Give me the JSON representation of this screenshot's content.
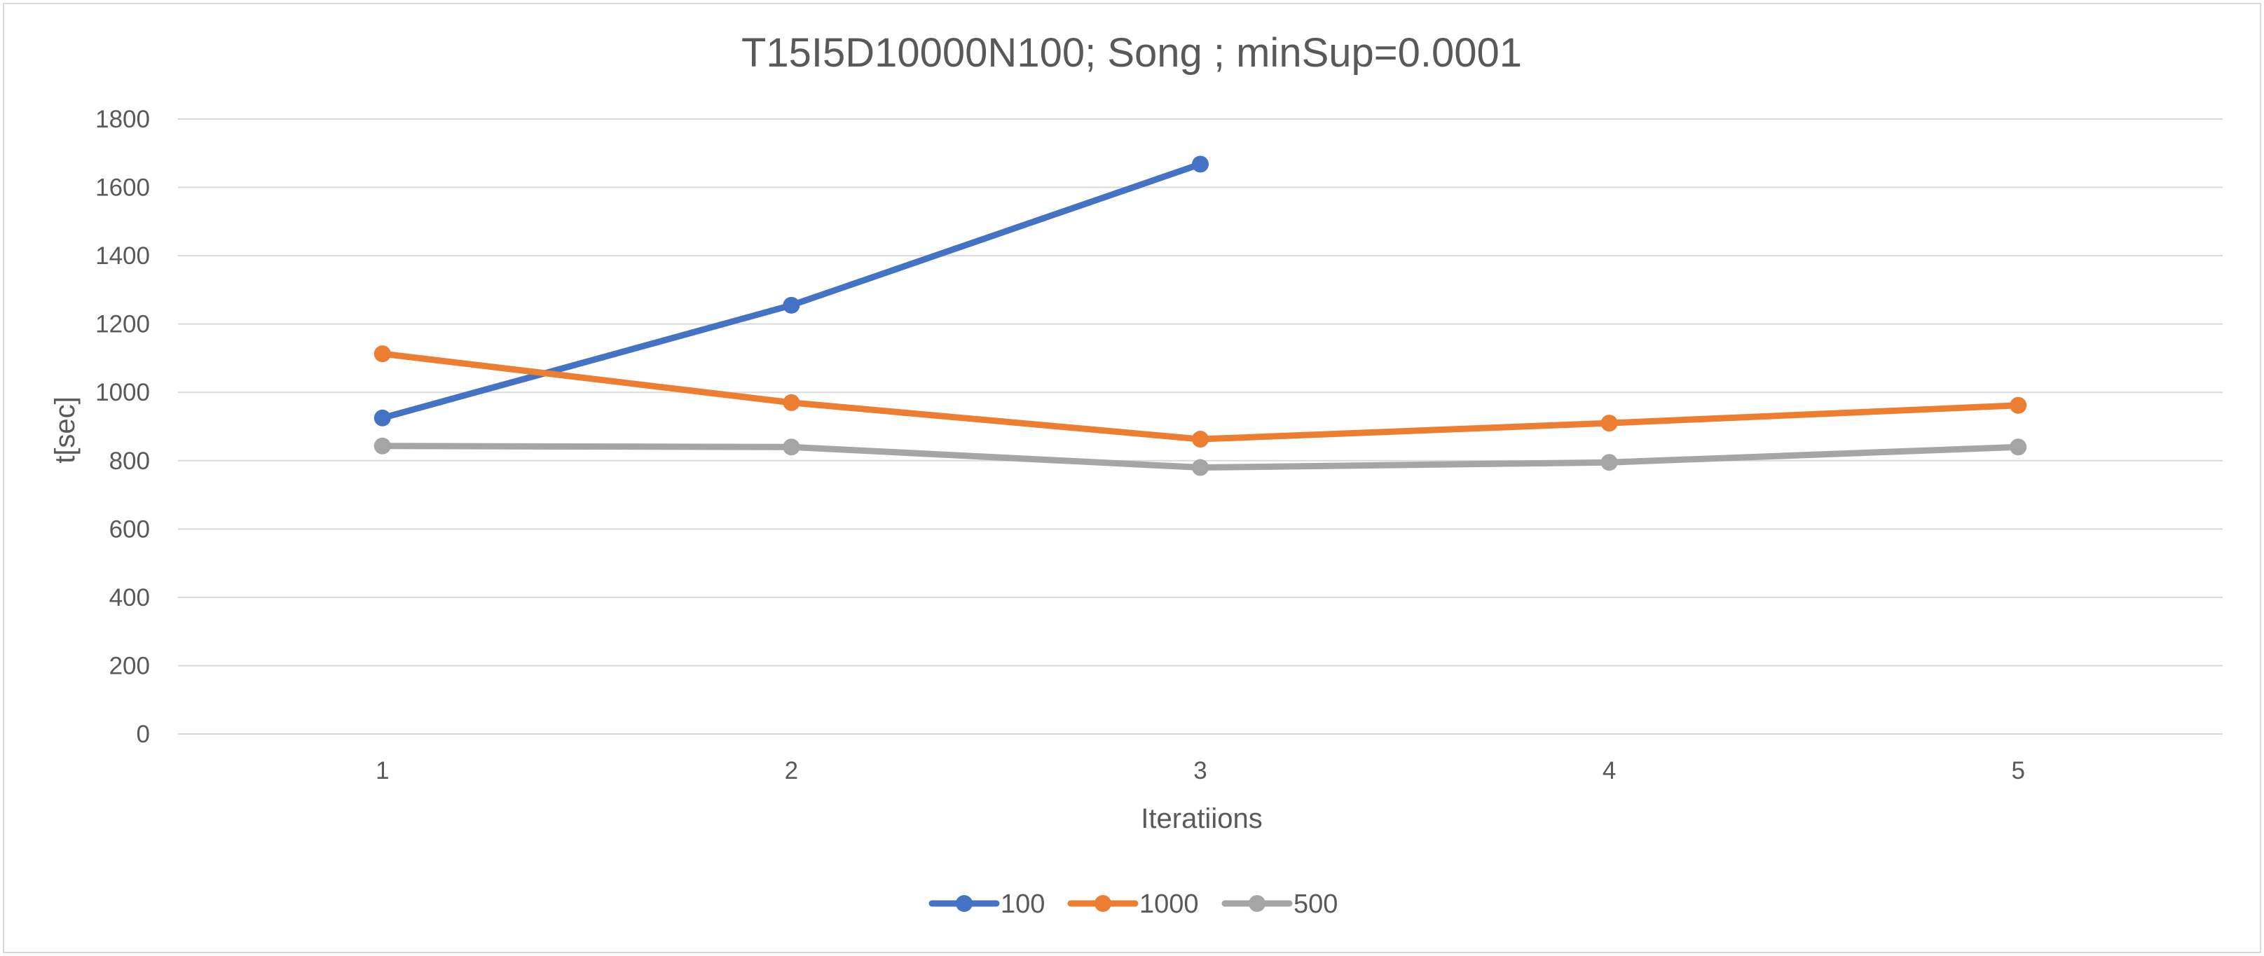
{
  "chart_data": {
    "type": "line",
    "title": "T15I5D10000N100; Song ; minSup=0.0001",
    "xlabel": "Iteratiions",
    "ylabel": "t[sec]",
    "categories": [
      "1",
      "2",
      "3",
      "4",
      "5"
    ],
    "ylim": [
      0,
      1800
    ],
    "yticks": [
      0,
      200,
      400,
      600,
      800,
      1000,
      1200,
      1400,
      1600,
      1800
    ],
    "grid": "horizontal",
    "legend_position": "bottom",
    "series": [
      {
        "name": "100",
        "color": "#4472c4",
        "values": [
          925,
          1255,
          1668,
          null,
          null
        ]
      },
      {
        "name": "1000",
        "color": "#ed7d31",
        "values": [
          1113,
          970,
          863,
          910,
          962
        ]
      },
      {
        "name": "500",
        "color": "#a5a5a5",
        "values": [
          843,
          840,
          780,
          795,
          840
        ]
      }
    ]
  }
}
